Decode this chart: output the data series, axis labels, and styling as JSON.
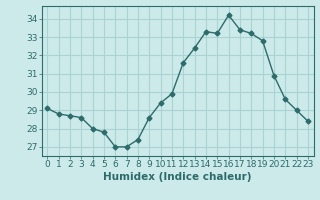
{
  "x": [
    0,
    1,
    2,
    3,
    4,
    5,
    6,
    7,
    8,
    9,
    10,
    11,
    12,
    13,
    14,
    15,
    16,
    17,
    18,
    19,
    20,
    21,
    22,
    23
  ],
  "y": [
    29.1,
    28.8,
    28.7,
    28.6,
    28.0,
    27.8,
    27.0,
    27.0,
    27.4,
    28.6,
    29.4,
    29.9,
    31.6,
    32.4,
    33.3,
    33.2,
    34.2,
    33.4,
    33.2,
    32.8,
    30.9,
    29.6,
    29.0,
    28.4
  ],
  "line_color": "#2e6b6b",
  "marker": "D",
  "marker_size": 2.5,
  "bg_color": "#cceaea",
  "grid_color": "#aad4d4",
  "xlabel": "Humidex (Indice chaleur)",
  "ylim": [
    26.5,
    34.7
  ],
  "xlim": [
    -0.5,
    23.5
  ],
  "yticks": [
    27,
    28,
    29,
    30,
    31,
    32,
    33,
    34
  ],
  "xtick_labels": [
    "0",
    "1",
    "2",
    "3",
    "4",
    "5",
    "6",
    "7",
    "8",
    "9",
    "10",
    "11",
    "12",
    "13",
    "14",
    "15",
    "16",
    "17",
    "18",
    "19",
    "20",
    "21",
    "22",
    "23"
  ],
  "tick_fontsize": 6.5,
  "xlabel_fontsize": 7.5
}
